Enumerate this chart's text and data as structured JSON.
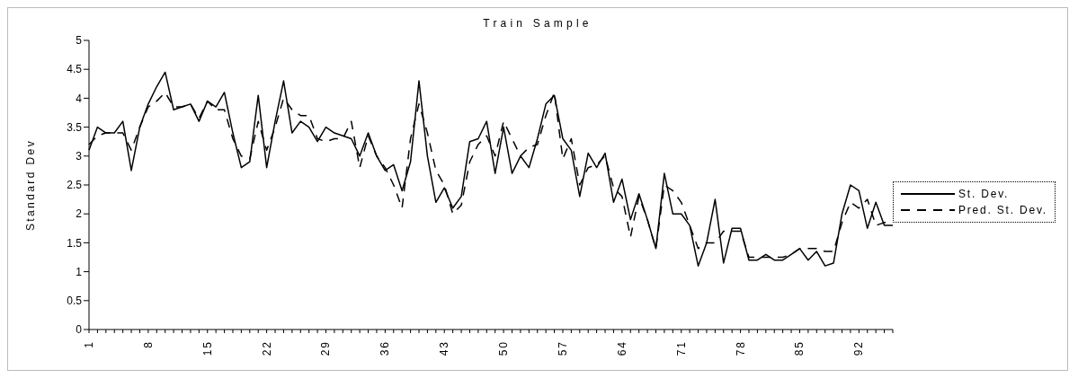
{
  "chart_data": {
    "type": "line",
    "title": "Train Sample",
    "ylabel": "Standard Dev",
    "categories": [
      "1",
      null,
      null,
      null,
      null,
      null,
      null,
      "8",
      null,
      null,
      null,
      null,
      null,
      null,
      "15",
      null,
      null,
      null,
      null,
      null,
      null,
      "22",
      null,
      null,
      null,
      null,
      null,
      null,
      "29",
      null,
      null,
      null,
      null,
      null,
      null,
      "36",
      null,
      null,
      null,
      null,
      null,
      null,
      "43",
      null,
      null,
      null,
      null,
      null,
      null,
      "50",
      null,
      null,
      null,
      null,
      null,
      null,
      "57",
      null,
      null,
      null,
      null,
      null,
      null,
      "64",
      null,
      null,
      null,
      null,
      null,
      null,
      "71",
      null,
      null,
      null,
      null,
      null,
      null,
      "78",
      null,
      null,
      null,
      null,
      null,
      null,
      "85",
      null,
      null,
      null,
      null,
      null,
      null,
      "92",
      null,
      null,
      null,
      null
    ],
    "series": [
      {
        "name": "St. Dev.",
        "color": "#000000",
        "line_style": "solid",
        "values": [
          3.1,
          3.5,
          3.4,
          3.4,
          3.6,
          2.75,
          3.5,
          3.9,
          4.2,
          4.45,
          3.8,
          3.85,
          3.9,
          3.6,
          3.95,
          3.85,
          4.1,
          3.4,
          2.8,
          2.9,
          4.05,
          2.8,
          3.6,
          4.3,
          3.4,
          3.6,
          3.5,
          3.25,
          3.5,
          3.4,
          3.35,
          3.3,
          3.0,
          3.4,
          3.0,
          2.75,
          2.85,
          2.4,
          2.9,
          4.3,
          3.0,
          2.2,
          2.45,
          2.1,
          2.3,
          3.25,
          3.3,
          3.6,
          2.7,
          3.5,
          2.7,
          3.0,
          2.8,
          3.3,
          3.9,
          4.05,
          3.3,
          3.1,
          2.3,
          3.05,
          2.8,
          3.05,
          2.2,
          2.6,
          1.9,
          2.35,
          1.9,
          1.4,
          2.7,
          2.0,
          2.0,
          1.8,
          1.1,
          1.5,
          2.25,
          1.15,
          1.75,
          1.75,
          1.2,
          1.2,
          1.3,
          1.2,
          1.2,
          1.3,
          1.4,
          1.2,
          1.35,
          1.1,
          1.15,
          2.0,
          2.5,
          2.4,
          1.75,
          2.2,
          1.8,
          1.8
        ]
      },
      {
        "name": "Pred. St. Dev.",
        "color": "#000000",
        "line_style": "dashed",
        "values": [
          3.2,
          3.35,
          3.4,
          3.4,
          3.4,
          3.1,
          3.5,
          3.85,
          3.95,
          4.1,
          3.85,
          3.85,
          3.9,
          3.65,
          3.95,
          3.8,
          3.8,
          3.3,
          3.0,
          2.95,
          3.6,
          3.1,
          3.5,
          4.0,
          3.8,
          3.7,
          3.7,
          3.3,
          3.25,
          3.3,
          3.3,
          3.6,
          2.8,
          3.35,
          3.0,
          2.8,
          2.5,
          2.1,
          3.3,
          3.9,
          3.4,
          2.75,
          2.5,
          2.0,
          2.15,
          2.9,
          3.2,
          3.35,
          3.0,
          3.6,
          3.3,
          3.0,
          3.15,
          3.2,
          3.7,
          4.1,
          2.95,
          3.3,
          2.5,
          2.8,
          2.85,
          3.0,
          2.45,
          2.3,
          1.6,
          2.3,
          1.9,
          1.4,
          2.5,
          2.4,
          2.2,
          1.8,
          1.4,
          1.5,
          1.5,
          1.7,
          1.7,
          1.7,
          1.25,
          1.25,
          1.25,
          1.25,
          1.25,
          1.3,
          1.4,
          1.4,
          1.4,
          1.35,
          1.35,
          1.85,
          2.2,
          2.1,
          2.25,
          1.8,
          1.85,
          1.85
        ]
      }
    ],
    "ylim": [
      0,
      5
    ],
    "yticks": [
      0,
      0.5,
      1,
      1.5,
      2,
      2.5,
      3,
      3.5,
      4,
      4.5,
      5
    ],
    "grid": false,
    "legend": "right",
    "marker": "none"
  }
}
